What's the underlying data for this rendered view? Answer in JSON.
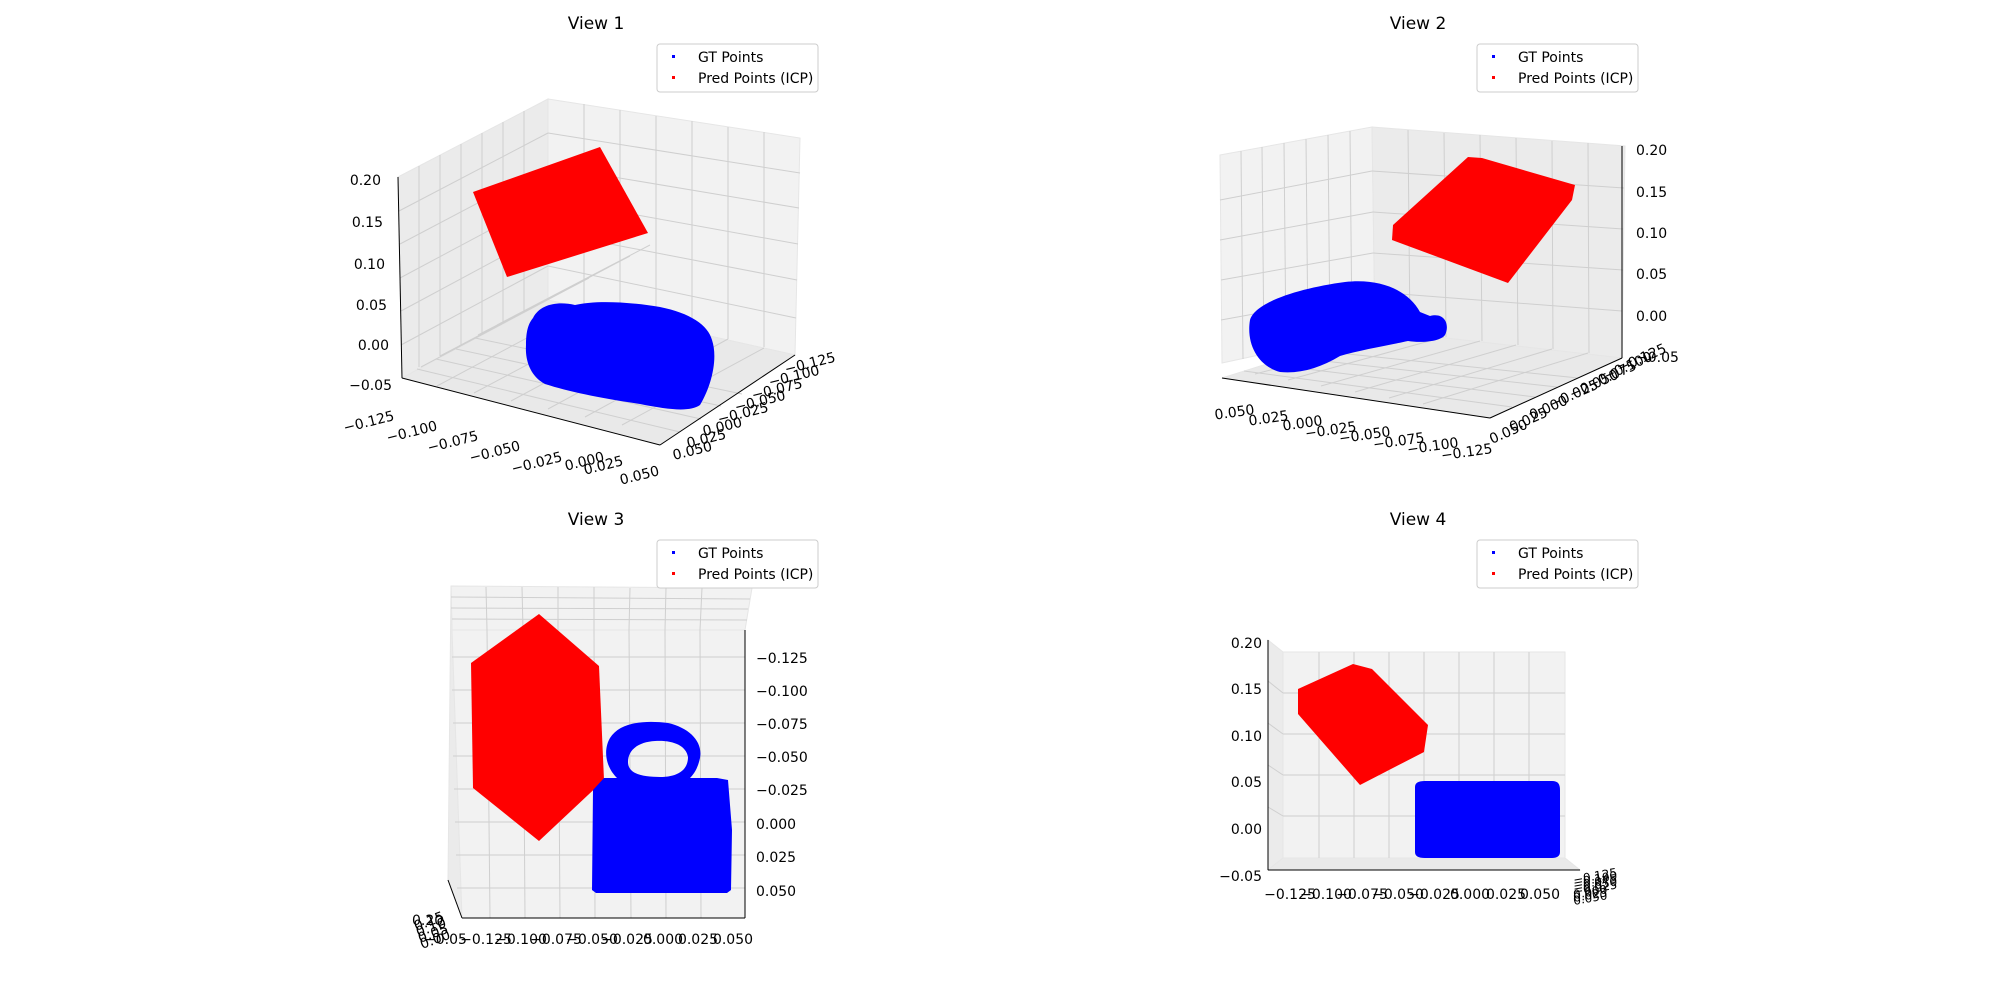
{
  "figure": {
    "legend": {
      "gt_label": "GT Points",
      "pred_label": "Pred Points (ICP)",
      "gt_color": "#0000ff",
      "pred_color": "#ff0000"
    },
    "grid": true,
    "legend_placement": "upper-right"
  },
  "chart_data": [
    {
      "type": "scatter",
      "title": "View 1",
      "projection": "3d",
      "series": [
        {
          "name": "GT Points",
          "color": "#0000ff",
          "shape": "mug-shaped point cloud (cylinder body with handle)"
        },
        {
          "name": "Pred Points (ICP)",
          "color": "#ff0000",
          "shape": "box-shaped point cloud"
        }
      ],
      "x_ticks": [
        "−0.125",
        "−0.100",
        "−0.075",
        "−0.050",
        "−0.025",
        "0.000",
        "0.025",
        "0.050"
      ],
      "y_ticks": [
        "−0.125",
        "−0.100",
        "−0.075",
        "−0.050",
        "−0.025",
        "0.000",
        "0.025",
        "0.050"
      ],
      "z_ticks": [
        "−0.05",
        "0.00",
        "0.05",
        "0.10",
        "0.15",
        "0.20"
      ],
      "xlim": [
        -0.125,
        0.05
      ],
      "ylim": [
        -0.125,
        0.05
      ],
      "zlim": [
        -0.05,
        0.2
      ]
    },
    {
      "type": "scatter",
      "title": "View 2",
      "projection": "3d",
      "series": [
        {
          "name": "GT Points",
          "color": "#0000ff",
          "shape": "mug-shaped point cloud (cylinder body with handle)"
        },
        {
          "name": "Pred Points (ICP)",
          "color": "#ff0000",
          "shape": "box-shaped point cloud"
        }
      ],
      "x_ticks": [
        "0.050",
        "0.025",
        "0.000",
        "−0.025",
        "−0.050",
        "−0.075",
        "−0.100",
        "−0.125"
      ],
      "y_ticks": [
        "0.050",
        "0.025",
        "0.000",
        "−0.025",
        "−0.050",
        "−0.075",
        "−0.100",
        "−0.125"
      ],
      "z_ticks": [
        "−0.05",
        "0.00",
        "0.05",
        "0.10",
        "0.15",
        "0.20"
      ],
      "xlim": [
        -0.125,
        0.05
      ],
      "ylim": [
        -0.125,
        0.05
      ],
      "zlim": [
        -0.05,
        0.2
      ]
    },
    {
      "type": "scatter",
      "title": "View 3",
      "projection": "3d",
      "series": [
        {
          "name": "GT Points",
          "color": "#0000ff",
          "shape": "mug-shaped point cloud (cylinder body with handle)"
        },
        {
          "name": "Pred Points (ICP)",
          "color": "#ff0000",
          "shape": "box-shaped point cloud"
        }
      ],
      "x_ticks": [
        "−0.125",
        "−0.100",
        "−0.075",
        "−0.050",
        "−0.025",
        "0.000",
        "0.025",
        "0.050"
      ],
      "y_ticks": [
        "−0.125",
        "−0.100",
        "−0.075",
        "−0.050",
        "−0.025",
        "0.000",
        "0.025",
        "0.050"
      ],
      "z_ticks": [
        "0.20",
        "0.15",
        "0.10",
        "0.05",
        "0.00",
        "−0.05"
      ],
      "xlim": [
        -0.125,
        0.05
      ],
      "ylim": [
        -0.125,
        0.05
      ],
      "zlim": [
        -0.05,
        0.2
      ]
    },
    {
      "type": "scatter",
      "title": "View 4",
      "projection": "3d",
      "series": [
        {
          "name": "GT Points",
          "color": "#0000ff",
          "shape": "mug-shaped point cloud (cylinder body with handle)"
        },
        {
          "name": "Pred Points (ICP)",
          "color": "#ff0000",
          "shape": "box-shaped point cloud"
        }
      ],
      "x_ticks": [
        "−0.125",
        "−0.100",
        "−0.075",
        "−0.050",
        "−0.025",
        "0.000",
        "0.025",
        "0.050"
      ],
      "y_ticks": [
        "−0.125",
        "−0.100",
        "−0.075",
        "−0.050",
        "−0.025",
        "0.000",
        "0.025",
        "0.050"
      ],
      "z_ticks": [
        "−0.05",
        "0.00",
        "0.05",
        "0.10",
        "0.15",
        "0.20"
      ],
      "xlim": [
        -0.125,
        0.05
      ],
      "ylim": [
        -0.125,
        0.05
      ],
      "zlim": [
        -0.05,
        0.2
      ]
    }
  ]
}
